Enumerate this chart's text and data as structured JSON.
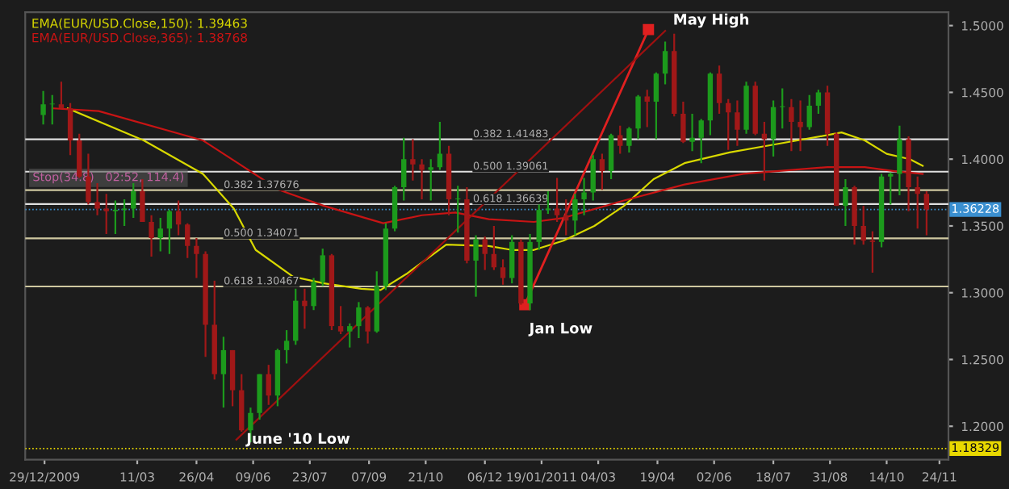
{
  "chart_data": {
    "type": "candlestick",
    "x": [
      "2009-12-28",
      "2010-01-04",
      "2010-01-11",
      "2010-01-18",
      "2010-01-25",
      "2010-02-01",
      "2010-02-08",
      "2010-02-15",
      "2010-02-22",
      "2010-03-01",
      "2010-03-08",
      "2010-03-15",
      "2010-03-22",
      "2010-03-29",
      "2010-04-05",
      "2010-04-12",
      "2010-04-19",
      "2010-04-26",
      "2010-05-03",
      "2010-05-10",
      "2010-05-17",
      "2010-05-24",
      "2010-05-31",
      "2010-06-07",
      "2010-06-14",
      "2010-06-21",
      "2010-06-28",
      "2010-07-05",
      "2010-07-12",
      "2010-07-19",
      "2010-07-26",
      "2010-08-02",
      "2010-08-09",
      "2010-08-16",
      "2010-08-23",
      "2010-08-30",
      "2010-09-06",
      "2010-09-13",
      "2010-09-20",
      "2010-09-27",
      "2010-10-04",
      "2010-10-11",
      "2010-10-18",
      "2010-10-25",
      "2010-11-01",
      "2010-11-08",
      "2010-11-15",
      "2010-11-22",
      "2010-11-29",
      "2010-12-06",
      "2010-12-13",
      "2010-12-20",
      "2010-12-27",
      "2011-01-03",
      "2011-01-10",
      "2011-01-17",
      "2011-01-24",
      "2011-01-31",
      "2011-02-07",
      "2011-02-14",
      "2011-02-21",
      "2011-02-28",
      "2011-03-07",
      "2011-03-14",
      "2011-03-21",
      "2011-03-28",
      "2011-04-04",
      "2011-04-11",
      "2011-04-18",
      "2011-04-25",
      "2011-05-02",
      "2011-05-09",
      "2011-05-16",
      "2011-05-23",
      "2011-05-30",
      "2011-06-06",
      "2011-06-13",
      "2011-06-20",
      "2011-06-27",
      "2011-07-04",
      "2011-07-11",
      "2011-07-18",
      "2011-07-25",
      "2011-08-01",
      "2011-08-08",
      "2011-08-15",
      "2011-08-22",
      "2011-08-29",
      "2011-09-05",
      "2011-09-12",
      "2011-09-19",
      "2011-09-26",
      "2011-10-03",
      "2011-10-10",
      "2011-10-17",
      "2011-10-24",
      "2011-10-31",
      "2011-11-07",
      "2011-11-14"
    ],
    "ohlc": [
      [
        1.433,
        1.451,
        1.426,
        1.441
      ],
      [
        1.441,
        1.448,
        1.426,
        1.441
      ],
      [
        1.441,
        1.458,
        1.438,
        1.438
      ],
      [
        1.438,
        1.442,
        1.403,
        1.414
      ],
      [
        1.414,
        1.419,
        1.386,
        1.387
      ],
      [
        1.387,
        1.404,
        1.366,
        1.368
      ],
      [
        1.368,
        1.382,
        1.358,
        1.363
      ],
      [
        1.363,
        1.374,
        1.344,
        1.361
      ],
      [
        1.361,
        1.369,
        1.344,
        1.362
      ],
      [
        1.362,
        1.37,
        1.35,
        1.363
      ],
      [
        1.363,
        1.382,
        1.356,
        1.376
      ],
      [
        1.376,
        1.385,
        1.353,
        1.353
      ],
      [
        1.353,
        1.358,
        1.327,
        1.341
      ],
      [
        1.341,
        1.356,
        1.331,
        1.348
      ],
      [
        1.348,
        1.362,
        1.329,
        1.361
      ],
      [
        1.361,
        1.369,
        1.343,
        1.351
      ],
      [
        1.351,
        1.352,
        1.326,
        1.335
      ],
      [
        1.335,
        1.341,
        1.311,
        1.329
      ],
      [
        1.329,
        1.331,
        1.252,
        1.276
      ],
      [
        1.276,
        1.309,
        1.235,
        1.239
      ],
      [
        1.239,
        1.267,
        1.214,
        1.257
      ],
      [
        1.257,
        1.257,
        1.215,
        1.227
      ],
      [
        1.227,
        1.239,
        1.196,
        1.197
      ],
      [
        1.197,
        1.214,
        1.188,
        1.21
      ],
      [
        1.21,
        1.239,
        1.205,
        1.239
      ],
      [
        1.239,
        1.246,
        1.216,
        1.223
      ],
      [
        1.223,
        1.258,
        1.215,
        1.257
      ],
      [
        1.257,
        1.272,
        1.247,
        1.264
      ],
      [
        1.264,
        1.303,
        1.261,
        1.294
      ],
      [
        1.294,
        1.303,
        1.273,
        1.29
      ],
      [
        1.29,
        1.311,
        1.287,
        1.308
      ],
      [
        1.308,
        1.333,
        1.305,
        1.328
      ],
      [
        1.328,
        1.329,
        1.272,
        1.275
      ],
      [
        1.275,
        1.29,
        1.269,
        1.271
      ],
      [
        1.271,
        1.277,
        1.259,
        1.275
      ],
      [
        1.275,
        1.293,
        1.266,
        1.289
      ],
      [
        1.289,
        1.29,
        1.262,
        1.271
      ],
      [
        1.271,
        1.316,
        1.27,
        1.305
      ],
      [
        1.305,
        1.352,
        1.302,
        1.348
      ],
      [
        1.348,
        1.38,
        1.346,
        1.379
      ],
      [
        1.379,
        1.416,
        1.369,
        1.4
      ],
      [
        1.4,
        1.415,
        1.384,
        1.396
      ],
      [
        1.396,
        1.4,
        1.37,
        1.392
      ],
      [
        1.392,
        1.4,
        1.369,
        1.394
      ],
      [
        1.394,
        1.428,
        1.392,
        1.404
      ],
      [
        1.404,
        1.41,
        1.358,
        1.37
      ],
      [
        1.37,
        1.38,
        1.345,
        1.37
      ],
      [
        1.37,
        1.379,
        1.322,
        1.324
      ],
      [
        1.324,
        1.343,
        1.297,
        1.34
      ],
      [
        1.34,
        1.342,
        1.317,
        1.329
      ],
      [
        1.329,
        1.35,
        1.317,
        1.319
      ],
      [
        1.319,
        1.325,
        1.306,
        1.311
      ],
      [
        1.311,
        1.343,
        1.307,
        1.338
      ],
      [
        1.338,
        1.34,
        1.291,
        1.292
      ],
      [
        1.292,
        1.344,
        1.287,
        1.338
      ],
      [
        1.338,
        1.366,
        1.332,
        1.362
      ],
      [
        1.362,
        1.376,
        1.359,
        1.363
      ],
      [
        1.363,
        1.386,
        1.353,
        1.358
      ],
      [
        1.358,
        1.37,
        1.343,
        1.354
      ],
      [
        1.354,
        1.374,
        1.343,
        1.37
      ],
      [
        1.37,
        1.386,
        1.358,
        1.375
      ],
      [
        1.375,
        1.403,
        1.369,
        1.4
      ],
      [
        1.4,
        1.404,
        1.377,
        1.391
      ],
      [
        1.391,
        1.419,
        1.385,
        1.418
      ],
      [
        1.418,
        1.425,
        1.404,
        1.41
      ],
      [
        1.41,
        1.424,
        1.405,
        1.423
      ],
      [
        1.423,
        1.448,
        1.415,
        1.447
      ],
      [
        1.447,
        1.452,
        1.424,
        1.443
      ],
      [
        1.443,
        1.465,
        1.415,
        1.464
      ],
      [
        1.464,
        1.488,
        1.456,
        1.481
      ],
      [
        1.481,
        1.494,
        1.432,
        1.434
      ],
      [
        1.434,
        1.443,
        1.412,
        1.413
      ],
      [
        1.413,
        1.434,
        1.406,
        1.416
      ],
      [
        1.416,
        1.43,
        1.397,
        1.429
      ],
      [
        1.429,
        1.465,
        1.418,
        1.464
      ],
      [
        1.464,
        1.47,
        1.434,
        1.442
      ],
      [
        1.442,
        1.445,
        1.407,
        1.435
      ],
      [
        1.435,
        1.444,
        1.41,
        1.422
      ],
      [
        1.422,
        1.458,
        1.419,
        1.455
      ],
      [
        1.455,
        1.458,
        1.418,
        1.419
      ],
      [
        1.419,
        1.428,
        1.384,
        1.415
      ],
      [
        1.415,
        1.444,
        1.402,
        1.439
      ],
      [
        1.439,
        1.453,
        1.423,
        1.439
      ],
      [
        1.439,
        1.445,
        1.406,
        1.428
      ],
      [
        1.428,
        1.444,
        1.406,
        1.424
      ],
      [
        1.424,
        1.448,
        1.422,
        1.44
      ],
      [
        1.44,
        1.452,
        1.434,
        1.45
      ],
      [
        1.45,
        1.455,
        1.41,
        1.419
      ],
      [
        1.419,
        1.42,
        1.365,
        1.365
      ],
      [
        1.365,
        1.385,
        1.35,
        1.379
      ],
      [
        1.379,
        1.38,
        1.336,
        1.35
      ],
      [
        1.35,
        1.365,
        1.336,
        1.339
      ],
      [
        1.339,
        1.346,
        1.315,
        1.338
      ],
      [
        1.338,
        1.389,
        1.334,
        1.387
      ],
      [
        1.387,
        1.39,
        1.366,
        1.389
      ],
      [
        1.389,
        1.425,
        1.373,
        1.415
      ],
      [
        1.415,
        1.417,
        1.361,
        1.379
      ],
      [
        1.379,
        1.387,
        1.348,
        1.374
      ],
      [
        1.374,
        1.376,
        1.343,
        1.36228
      ]
    ],
    "series": [
      {
        "type": "line",
        "name": "EMA(EUR/USD.Close,150): 1.39463",
        "color": "#d8d800",
        "x": [
          "2010-01-16",
          "2010-03-16",
          "2010-05-01",
          "2010-05-25",
          "2010-06-11",
          "2010-07-10",
          "2010-08-03",
          "2010-09-01",
          "2010-09-16",
          "2010-10-06",
          "2010-11-06",
          "2010-12-09",
          "2010-12-27",
          "2011-01-13",
          "2011-02-05",
          "2011-03-01",
          "2011-03-24",
          "2011-04-16",
          "2011-05-10",
          "2011-06-14",
          "2011-07-19",
          "2011-08-29",
          "2011-09-09",
          "2011-09-27",
          "2011-10-14",
          "2011-11-01",
          "2011-11-11"
        ],
        "values": [
          1.438,
          1.414,
          1.389,
          1.363,
          1.332,
          1.312,
          1.307,
          1.303,
          1.302,
          1.314,
          1.336,
          1.335,
          1.332,
          1.332,
          1.339,
          1.35,
          1.365,
          1.385,
          1.397,
          1.405,
          1.411,
          1.418,
          1.42,
          1.414,
          1.404,
          1.4,
          1.395
        ]
      },
      {
        "type": "line",
        "name": "EMA(EUR/USD.Close,365): 1.38768",
        "color": "#c81414",
        "x": [
          "2010-01-05",
          "2010-02-09",
          "2010-05-01",
          "2010-05-25",
          "2010-06-29",
          "2010-08-03",
          "2010-09-18",
          "2010-10-18",
          "2010-11-13",
          "2010-12-09",
          "2011-01-13",
          "2011-02-05",
          "2011-03-24",
          "2011-05-10",
          "2011-06-25",
          "2011-08-29",
          "2011-09-27",
          "2011-10-20",
          "2011-11-11"
        ],
        "values": [
          1.438,
          1.436,
          1.414,
          1.399,
          1.377,
          1.365,
          1.352,
          1.358,
          1.36,
          1.355,
          1.353,
          1.356,
          1.369,
          1.381,
          1.389,
          1.394,
          1.394,
          1.391,
          1.389
        ]
      },
      {
        "type": "line",
        "color": "#e02020",
        "marker": "square",
        "x": [
          "2011-01-06",
          "2011-04-12"
        ],
        "values": [
          1.291,
          1.497
        ]
      },
      {
        "type": "line",
        "color": "#a01010",
        "x": [
          "2010-05-27",
          "2011-04-25"
        ],
        "values": [
          1.19,
          1.496
        ]
      }
    ],
    "xlim": [
      "2009-12-14",
      "2011-12-01"
    ],
    "xticks": [
      {
        "value": "2009-12-29",
        "label": "29/12/2009"
      },
      {
        "value": "2010-03-11",
        "label": "11/03"
      },
      {
        "value": "2010-04-26",
        "label": "26/04"
      },
      {
        "value": "2010-06-09",
        "label": "09/06"
      },
      {
        "value": "2010-07-23",
        "label": "23/07"
      },
      {
        "value": "2010-09-07",
        "label": "07/09"
      },
      {
        "value": "2010-10-21",
        "label": "21/10"
      },
      {
        "value": "2010-12-06",
        "label": "06/12"
      },
      {
        "value": "2011-01-19",
        "label": "19/01/2011"
      },
      {
        "value": "2011-03-04",
        "label": "04/03"
      },
      {
        "value": "2011-04-19",
        "label": "19/04"
      },
      {
        "value": "2011-06-02",
        "label": "02/06"
      },
      {
        "value": "2011-07-18",
        "label": "18/07"
      },
      {
        "value": "2011-08-31",
        "label": "31/08"
      },
      {
        "value": "2011-10-14",
        "label": "14/10"
      },
      {
        "value": "2011-11-24",
        "label": "24/11"
      }
    ],
    "ylim": [
      1.175,
      1.51
    ],
    "yticks": [
      {
        "value": 1.2,
        "label": "1.2000"
      },
      {
        "value": 1.25,
        "label": "1.2500"
      },
      {
        "value": 1.3,
        "label": "1.3000"
      },
      {
        "value": 1.35,
        "label": "1.3500"
      },
      {
        "value": 1.4,
        "label": "1.4000"
      },
      {
        "value": 1.45,
        "label": "1.4500"
      },
      {
        "value": 1.5,
        "label": "1.5000"
      }
    ],
    "ref_lines": [
      {
        "axis": "y",
        "value": 1.37676,
        "label": "0.382 1.37676",
        "color": "#cfc8a0",
        "line_style": "solid"
      },
      {
        "axis": "y",
        "value": 1.34071,
        "label": "0.500 1.34071",
        "color": "#cfc8a0",
        "line_style": "solid"
      },
      {
        "axis": "y",
        "value": 1.30467,
        "label": "0.618 1.30467",
        "color": "#cfc8a0",
        "line_style": "solid"
      },
      {
        "axis": "y",
        "value": 1.41483,
        "label": "0.382 1.41483",
        "color": "#e0e0e0",
        "line_style": "solid"
      },
      {
        "axis": "y",
        "value": 1.39061,
        "label": "0.500 1.39061",
        "color": "#e0e0e0",
        "line_style": "solid"
      },
      {
        "axis": "y",
        "value": 1.36639,
        "label": "0.618 1.36639",
        "color": "#e0e0e0",
        "line_style": "solid"
      },
      {
        "axis": "y",
        "value": 1.36228,
        "label": "1.36228",
        "color": "#3a8fd0",
        "line_style": "dotted"
      },
      {
        "axis": "y",
        "value": 1.18329,
        "label": "1.18329",
        "color": "#e8d800",
        "line_style": "dotted"
      }
    ],
    "annotations": [
      {
        "text": "May High",
        "x": "2011-04-12",
        "y": 1.497
      },
      {
        "text": "Jan Low",
        "x": "2011-01-06",
        "y": 1.291
      },
      {
        "text": "June '10 Low",
        "x": "2010-05-27",
        "y": 1.19
      },
      "Stop(34.8)",
      "02:52, 114.4)"
    ],
    "legend": "top left",
    "grid": false
  }
}
